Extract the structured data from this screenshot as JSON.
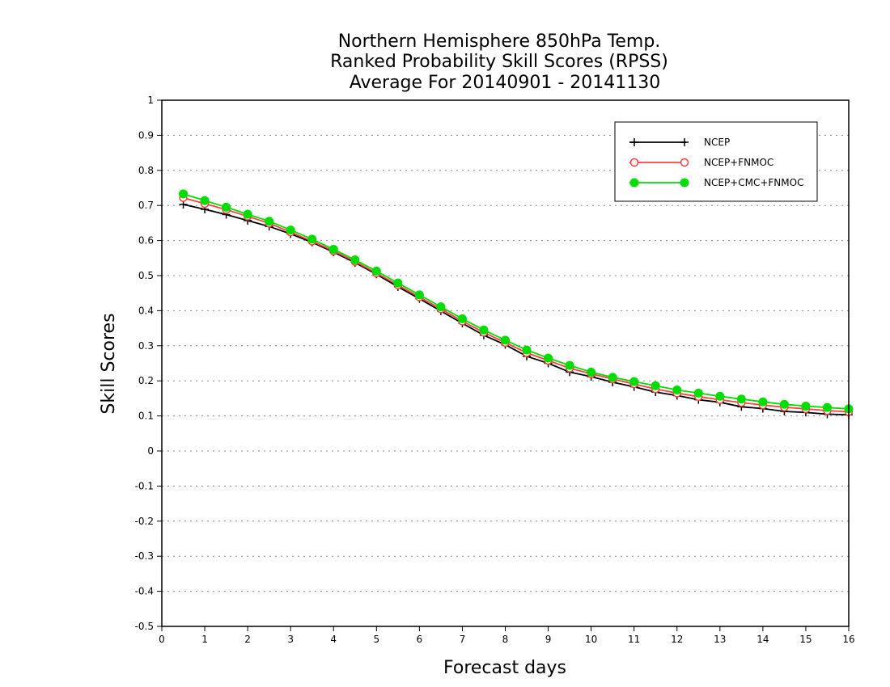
{
  "chart_data": {
    "type": "line",
    "title": [
      "Northern Hemisphere 850hPa Temp.",
      "Ranked Probability Skill Scores (RPSS)",
      "Average For 20140901 - 20141130"
    ],
    "xlabel": "Forecast days",
    "ylabel": "Skill Scores",
    "xlim": [
      0,
      16
    ],
    "ylim": [
      -0.5,
      1
    ],
    "x_ticks": [
      "0",
      "1",
      "2",
      "3",
      "4",
      "5",
      "6",
      "7",
      "8",
      "9",
      "10",
      "11",
      "12",
      "13",
      "14",
      "15",
      "16"
    ],
    "y_ticks": [
      "1",
      "0.9",
      "0.8",
      "0.7",
      "0.6",
      "0.5",
      "0.4",
      "0.3",
      "0.2",
      "0.1",
      "0",
      "-0.1",
      "-0.2",
      "-0.3",
      "-0.4",
      "-0.5"
    ],
    "grid": "horizontal dotted",
    "legend_position": "top-right",
    "x": [
      0.5,
      1,
      1.5,
      2,
      2.5,
      3,
      3.5,
      4,
      4.5,
      5,
      5.5,
      6,
      6.5,
      7,
      7.5,
      8,
      8.5,
      9,
      9.5,
      10,
      10.5,
      11,
      11.5,
      12,
      12.5,
      13,
      13.5,
      14,
      14.5,
      15,
      15.5,
      16
    ],
    "series": [
      {
        "name": "NCEP",
        "color": "#000000",
        "marker": "plus",
        "values": [
          0.703,
          0.689,
          0.674,
          0.657,
          0.64,
          0.619,
          0.595,
          0.567,
          0.537,
          0.504,
          0.468,
          0.434,
          0.399,
          0.364,
          0.33,
          0.303,
          0.27,
          0.25,
          0.225,
          0.212,
          0.196,
          0.183,
          0.168,
          0.158,
          0.146,
          0.139,
          0.126,
          0.121,
          0.113,
          0.11,
          0.105,
          0.103
        ]
      },
      {
        "name": "NCEP+FNMOC",
        "color": "#ff4040",
        "marker": "open-circle",
        "values": [
          0.722,
          0.705,
          0.688,
          0.669,
          0.649,
          0.624,
          0.598,
          0.57,
          0.54,
          0.507,
          0.473,
          0.439,
          0.405,
          0.37,
          0.338,
          0.309,
          0.28,
          0.258,
          0.236,
          0.22,
          0.205,
          0.191,
          0.177,
          0.165,
          0.155,
          0.146,
          0.138,
          0.131,
          0.125,
          0.12,
          0.115,
          0.112
        ]
      },
      {
        "name": "NCEP+CMC+FNMOC",
        "color": "#00dd00",
        "marker": "filled-circle",
        "values": [
          0.733,
          0.714,
          0.695,
          0.675,
          0.655,
          0.63,
          0.604,
          0.575,
          0.545,
          0.513,
          0.479,
          0.445,
          0.411,
          0.377,
          0.345,
          0.316,
          0.288,
          0.265,
          0.244,
          0.225,
          0.21,
          0.198,
          0.186,
          0.174,
          0.165,
          0.156,
          0.148,
          0.14,
          0.133,
          0.128,
          0.124,
          0.12
        ]
      }
    ]
  }
}
